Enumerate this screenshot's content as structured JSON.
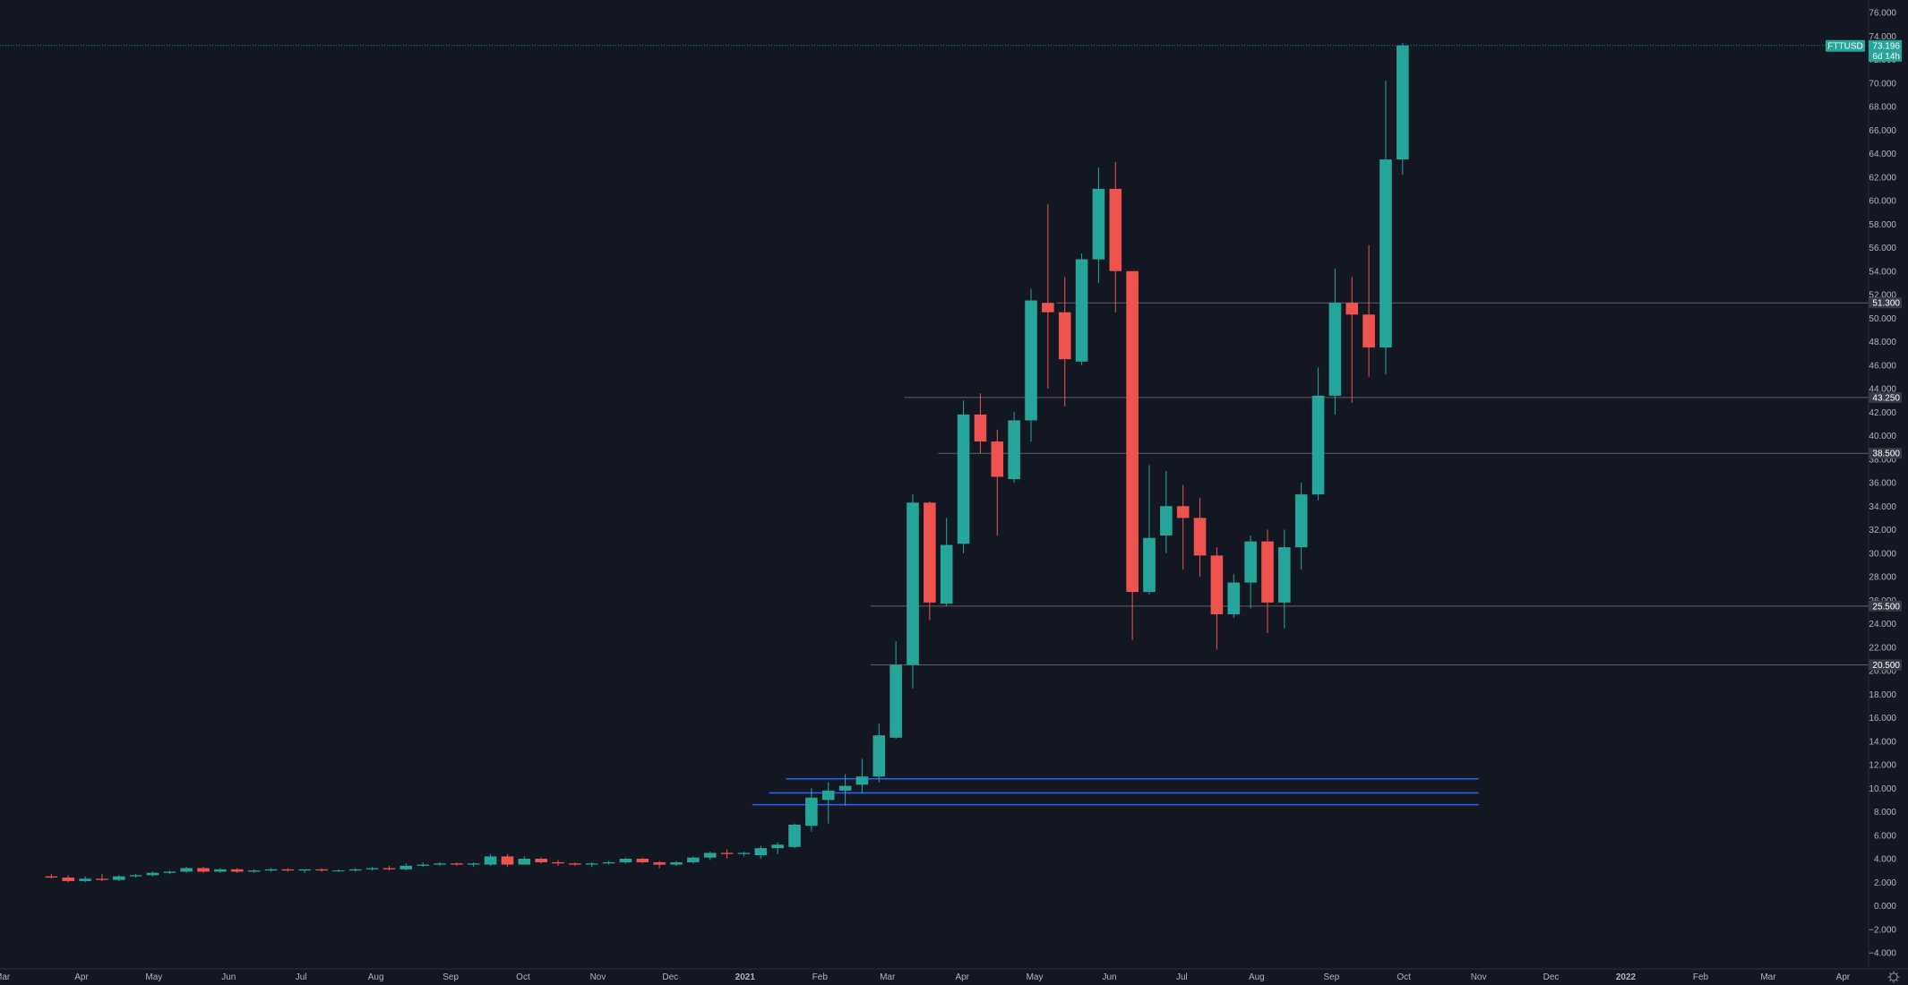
{
  "chart_data": {
    "type": "candlestick",
    "symbol": "FTTUSD",
    "last_price": "73.196",
    "countdown": "6d 14h",
    "colors": {
      "background": "#131722",
      "up": "#26a69a",
      "down": "#ef5350",
      "axis_text": "#b2b5be",
      "horizontal_line": "#5d606b",
      "support_lines": "#2962ff",
      "tag_background": "#363a45"
    },
    "y_axis": {
      "ylim": [
        -5,
        76
      ],
      "tick_labels": [
        "76.000",
        "74.000",
        "72.000",
        "70.000",
        "68.000",
        "66.000",
        "64.000",
        "62.000",
        "60.000",
        "58.000",
        "56.000",
        "54.000",
        "52.000",
        "50.000",
        "48.000",
        "46.000",
        "44.000",
        "42.000",
        "40.000",
        "38.000",
        "36.000",
        "34.000",
        "32.000",
        "30.000",
        "28.000",
        "26.000",
        "24.000",
        "22.000",
        "20.000",
        "18.000",
        "16.000",
        "14.000",
        "12.000",
        "10.000",
        "8.000",
        "6.000",
        "4.000",
        "2.000",
        "0.000",
        "−2.000",
        "−4.000"
      ]
    },
    "x_axis": {
      "start": "2020-03-16",
      "tick_labels": [
        {
          "label": "Apr",
          "date": "2020-04-01",
          "bold": false
        },
        {
          "label": "May",
          "date": "2020-05-01",
          "bold": false
        },
        {
          "label": "Jun",
          "date": "2020-06-01",
          "bold": false
        },
        {
          "label": "Jul",
          "date": "2020-07-01",
          "bold": false
        },
        {
          "label": "Aug",
          "date": "2020-08-01",
          "bold": false
        },
        {
          "label": "Sep",
          "date": "2020-09-01",
          "bold": false
        },
        {
          "label": "Oct",
          "date": "2020-10-01",
          "bold": false
        },
        {
          "label": "Nov",
          "date": "2020-11-01",
          "bold": false
        },
        {
          "label": "Dec",
          "date": "2020-12-01",
          "bold": false
        },
        {
          "label": "2021",
          "date": "2021-01-01",
          "bold": true
        },
        {
          "label": "Feb",
          "date": "2021-02-01",
          "bold": false
        },
        {
          "label": "Mar",
          "date": "2021-03-01",
          "bold": false
        },
        {
          "label": "Apr",
          "date": "2021-04-01",
          "bold": false
        },
        {
          "label": "May",
          "date": "2021-05-01",
          "bold": false
        },
        {
          "label": "Jun",
          "date": "2021-06-01",
          "bold": false
        },
        {
          "label": "Jul",
          "date": "2021-07-01",
          "bold": false
        },
        {
          "label": "Aug",
          "date": "2021-08-01",
          "bold": false
        },
        {
          "label": "Sep",
          "date": "2021-09-01",
          "bold": false
        },
        {
          "label": "Oct",
          "date": "2021-10-01",
          "bold": false
        },
        {
          "label": "Nov",
          "date": "2021-11-01",
          "bold": false
        },
        {
          "label": "Dec",
          "date": "2021-12-01",
          "bold": false
        },
        {
          "label": "2022",
          "date": "2022-01-01",
          "bold": true
        },
        {
          "label": "Feb",
          "date": "2022-02-01",
          "bold": false
        },
        {
          "label": "Mar",
          "date": "2022-03-01",
          "bold": false
        },
        {
          "label": "Apr",
          "date": "2022-04-01",
          "bold": false
        }
      ]
    },
    "horizontal_levels": [
      {
        "price": 51.3,
        "label": "51.300",
        "from": "2021-05-10"
      },
      {
        "price": 43.25,
        "label": "43.250",
        "from": "2021-03-08"
      },
      {
        "price": 38.5,
        "label": "38.500",
        "from": "2021-03-22"
      },
      {
        "price": 25.5,
        "label": "25.500",
        "from": "2021-02-22"
      },
      {
        "price": 20.5,
        "label": "20.500",
        "from": "2021-02-22"
      }
    ],
    "support_lines": [
      {
        "price": 10.8,
        "from": "2021-01-18",
        "to": "2021-11-01"
      },
      {
        "price": 9.6,
        "from": "2021-01-11",
        "to": "2021-11-01"
      },
      {
        "price": 8.6,
        "from": "2021-01-04",
        "to": "2021-11-01"
      }
    ],
    "candles": [
      {
        "date": "2020-03-16",
        "open": 2.5,
        "high": 2.7,
        "low": 2.3,
        "close": 2.4
      },
      {
        "date": "2020-03-23",
        "open": 2.4,
        "high": 2.6,
        "low": 2.0,
        "close": 2.1
      },
      {
        "date": "2020-03-30",
        "open": 2.1,
        "high": 2.5,
        "low": 2.0,
        "close": 2.3
      },
      {
        "date": "2020-04-06",
        "open": 2.3,
        "high": 2.7,
        "low": 2.1,
        "close": 2.2
      },
      {
        "date": "2020-04-13",
        "open": 2.2,
        "high": 2.6,
        "low": 2.1,
        "close": 2.5
      },
      {
        "date": "2020-04-20",
        "open": 2.5,
        "high": 2.7,
        "low": 2.4,
        "close": 2.6
      },
      {
        "date": "2020-04-27",
        "open": 2.6,
        "high": 2.9,
        "low": 2.5,
        "close": 2.8
      },
      {
        "date": "2020-05-04",
        "open": 2.8,
        "high": 3.0,
        "low": 2.7,
        "close": 2.9
      },
      {
        "date": "2020-05-11",
        "open": 2.9,
        "high": 3.3,
        "low": 2.8,
        "close": 3.2
      },
      {
        "date": "2020-05-18",
        "open": 3.2,
        "high": 3.3,
        "low": 2.8,
        "close": 2.9
      },
      {
        "date": "2020-05-25",
        "open": 2.9,
        "high": 3.2,
        "low": 2.8,
        "close": 3.1
      },
      {
        "date": "2020-06-01",
        "open": 3.1,
        "high": 3.2,
        "low": 2.8,
        "close": 2.9
      },
      {
        "date": "2020-06-08",
        "open": 2.9,
        "high": 3.1,
        "low": 2.8,
        "close": 3.0
      },
      {
        "date": "2020-06-15",
        "open": 3.0,
        "high": 3.2,
        "low": 2.9,
        "close": 3.1
      },
      {
        "date": "2020-06-22",
        "open": 3.1,
        "high": 3.2,
        "low": 2.9,
        "close": 3.0
      },
      {
        "date": "2020-06-29",
        "open": 3.0,
        "high": 3.1,
        "low": 2.8,
        "close": 3.1
      },
      {
        "date": "2020-07-06",
        "open": 3.1,
        "high": 3.2,
        "low": 2.9,
        "close": 3.0
      },
      {
        "date": "2020-07-13",
        "open": 3.0,
        "high": 3.1,
        "low": 2.9,
        "close": 3.0
      },
      {
        "date": "2020-07-20",
        "open": 3.0,
        "high": 3.2,
        "low": 2.9,
        "close": 3.1
      },
      {
        "date": "2020-07-27",
        "open": 3.1,
        "high": 3.3,
        "low": 3.0,
        "close": 3.2
      },
      {
        "date": "2020-08-03",
        "open": 3.2,
        "high": 3.4,
        "low": 3.0,
        "close": 3.1
      },
      {
        "date": "2020-08-10",
        "open": 3.1,
        "high": 3.6,
        "low": 3.0,
        "close": 3.4
      },
      {
        "date": "2020-08-17",
        "open": 3.4,
        "high": 3.7,
        "low": 3.3,
        "close": 3.5
      },
      {
        "date": "2020-08-24",
        "open": 3.5,
        "high": 3.7,
        "low": 3.4,
        "close": 3.6
      },
      {
        "date": "2020-08-31",
        "open": 3.6,
        "high": 3.7,
        "low": 3.4,
        "close": 3.5
      },
      {
        "date": "2020-09-07",
        "open": 3.5,
        "high": 3.7,
        "low": 3.3,
        "close": 3.6
      },
      {
        "date": "2020-09-14",
        "open": 3.5,
        "high": 4.4,
        "low": 3.4,
        "close": 4.2
      },
      {
        "date": "2020-09-21",
        "open": 4.2,
        "high": 4.4,
        "low": 3.3,
        "close": 3.5
      },
      {
        "date": "2020-09-28",
        "open": 3.5,
        "high": 4.2,
        "low": 3.5,
        "close": 4.0
      },
      {
        "date": "2020-10-05",
        "open": 4.0,
        "high": 4.1,
        "low": 3.6,
        "close": 3.7
      },
      {
        "date": "2020-10-12",
        "open": 3.7,
        "high": 3.9,
        "low": 3.4,
        "close": 3.6
      },
      {
        "date": "2020-10-19",
        "open": 3.6,
        "high": 3.7,
        "low": 3.4,
        "close": 3.5
      },
      {
        "date": "2020-10-26",
        "open": 3.5,
        "high": 3.7,
        "low": 3.3,
        "close": 3.6
      },
      {
        "date": "2020-11-02",
        "open": 3.6,
        "high": 3.8,
        "low": 3.5,
        "close": 3.7
      },
      {
        "date": "2020-11-09",
        "open": 3.7,
        "high": 4.1,
        "low": 3.6,
        "close": 4.0
      },
      {
        "date": "2020-11-16",
        "open": 4.0,
        "high": 4.1,
        "low": 3.6,
        "close": 3.7
      },
      {
        "date": "2020-11-23",
        "open": 3.7,
        "high": 3.8,
        "low": 3.2,
        "close": 3.5
      },
      {
        "date": "2020-11-30",
        "open": 3.5,
        "high": 3.8,
        "low": 3.4,
        "close": 3.7
      },
      {
        "date": "2020-12-07",
        "open": 3.7,
        "high": 4.2,
        "low": 3.6,
        "close": 4.1
      },
      {
        "date": "2020-12-14",
        "open": 4.1,
        "high": 4.6,
        "low": 3.9,
        "close": 4.5
      },
      {
        "date": "2020-12-21",
        "open": 4.5,
        "high": 4.8,
        "low": 4.0,
        "close": 4.4
      },
      {
        "date": "2020-12-28",
        "open": 4.4,
        "high": 4.6,
        "low": 4.2,
        "close": 4.5
      },
      {
        "date": "2021-01-04",
        "open": 4.3,
        "high": 5.1,
        "low": 4.0,
        "close": 4.9
      },
      {
        "date": "2021-01-11",
        "open": 4.9,
        "high": 5.4,
        "low": 4.4,
        "close": 5.2
      },
      {
        "date": "2021-01-18",
        "open": 5.0,
        "high": 7.0,
        "low": 4.9,
        "close": 6.9
      },
      {
        "date": "2021-01-25",
        "open": 6.8,
        "high": 10.0,
        "low": 6.3,
        "close": 9.2
      },
      {
        "date": "2021-02-01",
        "open": 9.0,
        "high": 10.5,
        "low": 7.0,
        "close": 9.8
      },
      {
        "date": "2021-02-08",
        "open": 9.8,
        "high": 11.2,
        "low": 8.5,
        "close": 10.2
      },
      {
        "date": "2021-02-15",
        "open": 10.3,
        "high": 12.5,
        "low": 9.6,
        "close": 11.0
      },
      {
        "date": "2021-02-22",
        "open": 11.0,
        "high": 15.5,
        "low": 10.5,
        "close": 14.5
      },
      {
        "date": "2021-03-01",
        "open": 14.3,
        "high": 22.5,
        "low": 14.2,
        "close": 20.5
      },
      {
        "date": "2021-03-08",
        "open": 20.5,
        "high": 35.0,
        "low": 18.5,
        "close": 34.3
      },
      {
        "date": "2021-03-15",
        "open": 34.3,
        "high": 34.4,
        "low": 24.3,
        "close": 25.8
      },
      {
        "date": "2021-03-22",
        "open": 25.7,
        "high": 33.0,
        "low": 25.5,
        "close": 30.7
      },
      {
        "date": "2021-03-29",
        "open": 30.8,
        "high": 43.0,
        "low": 30.0,
        "close": 41.8
      },
      {
        "date": "2021-04-05",
        "open": 41.8,
        "high": 43.6,
        "low": 38.5,
        "close": 39.5
      },
      {
        "date": "2021-04-12",
        "open": 39.5,
        "high": 40.5,
        "low": 31.5,
        "close": 36.5
      },
      {
        "date": "2021-04-19",
        "open": 36.3,
        "high": 42.0,
        "low": 36.0,
        "close": 41.3
      },
      {
        "date": "2021-04-26",
        "open": 41.3,
        "high": 52.5,
        "low": 39.5,
        "close": 51.5
      },
      {
        "date": "2021-05-03",
        "open": 51.3,
        "high": 59.7,
        "low": 44.0,
        "close": 50.5
      },
      {
        "date": "2021-05-10",
        "open": 50.5,
        "high": 53.5,
        "low": 42.5,
        "close": 46.5
      },
      {
        "date": "2021-05-17",
        "open": 46.3,
        "high": 55.5,
        "low": 46.0,
        "close": 55.0
      },
      {
        "date": "2021-05-24",
        "open": 55.0,
        "high": 62.8,
        "low": 53.0,
        "close": 61.0
      },
      {
        "date": "2021-05-31",
        "open": 61.0,
        "high": 63.3,
        "low": 50.5,
        "close": 54.0
      },
      {
        "date": "2021-06-07",
        "open": 54.0,
        "high": 54.0,
        "low": 22.6,
        "close": 26.7
      },
      {
        "date": "2021-06-14",
        "open": 26.7,
        "high": 37.5,
        "low": 26.5,
        "close": 31.3
      },
      {
        "date": "2021-06-21",
        "open": 31.5,
        "high": 37.0,
        "low": 30.0,
        "close": 34.0
      },
      {
        "date": "2021-06-28",
        "open": 34.0,
        "high": 35.8,
        "low": 28.6,
        "close": 33.0
      },
      {
        "date": "2021-07-05",
        "open": 33.0,
        "high": 34.7,
        "low": 28.0,
        "close": 29.8
      },
      {
        "date": "2021-07-12",
        "open": 29.8,
        "high": 30.5,
        "low": 21.8,
        "close": 24.8
      },
      {
        "date": "2021-07-19",
        "open": 24.8,
        "high": 28.2,
        "low": 24.5,
        "close": 27.5
      },
      {
        "date": "2021-07-26",
        "open": 27.5,
        "high": 31.5,
        "low": 25.3,
        "close": 31.0
      },
      {
        "date": "2021-08-02",
        "open": 31.0,
        "high": 32.0,
        "low": 23.2,
        "close": 25.8
      },
      {
        "date": "2021-08-09",
        "open": 25.8,
        "high": 32.0,
        "low": 23.6,
        "close": 30.5
      },
      {
        "date": "2021-08-16",
        "open": 30.5,
        "high": 36.0,
        "low": 28.6,
        "close": 35.0
      },
      {
        "date": "2021-08-23",
        "open": 35.0,
        "high": 45.8,
        "low": 34.5,
        "close": 43.4
      },
      {
        "date": "2021-08-30",
        "open": 43.4,
        "high": 54.2,
        "low": 41.8,
        "close": 51.3
      },
      {
        "date": "2021-09-06",
        "open": 51.3,
        "high": 53.5,
        "low": 42.8,
        "close": 50.3
      },
      {
        "date": "2021-09-13",
        "open": 50.3,
        "high": 56.2,
        "low": 45.0,
        "close": 47.5
      },
      {
        "date": "2021-09-20",
        "open": 47.5,
        "high": 70.2,
        "low": 45.2,
        "close": 63.5
      },
      {
        "date": "2021-09-27",
        "open": 63.5,
        "high": 73.4,
        "low": 62.2,
        "close": 73.2
      }
    ]
  }
}
